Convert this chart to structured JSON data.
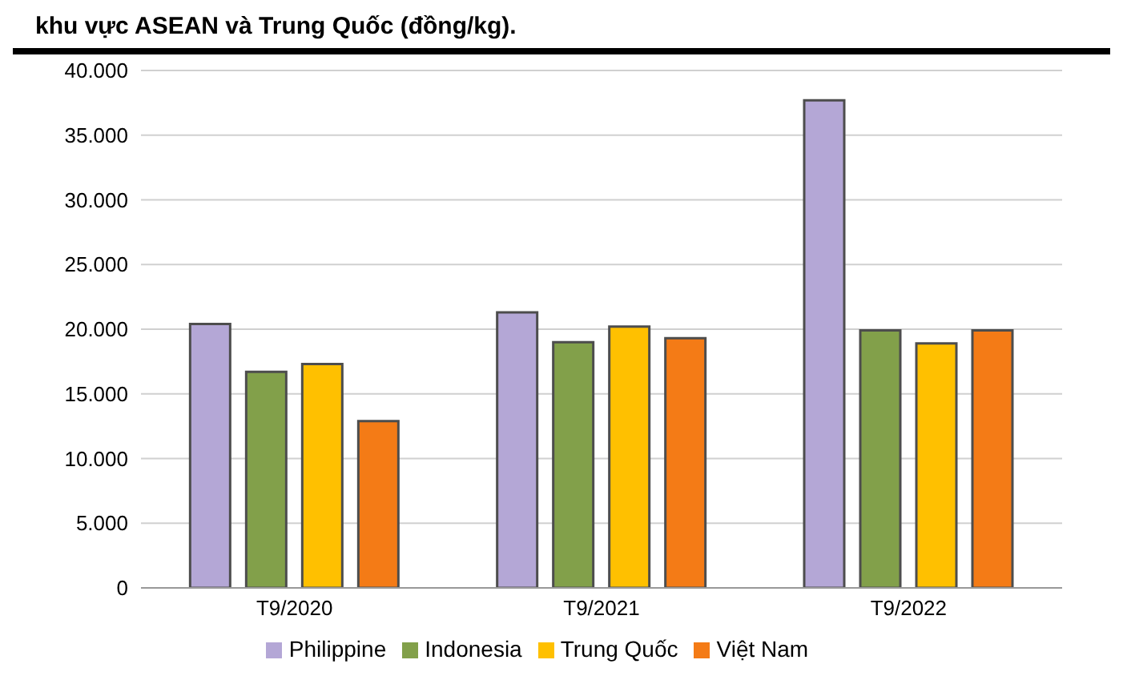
{
  "chart_data": {
    "type": "bar",
    "title": "khu vực ASEAN và Trung Quốc (đồng/kg).",
    "categories": [
      "T9/2020",
      "T9/2021",
      "T9/2022"
    ],
    "series": [
      {
        "name": "Philippine",
        "color": "#b4a7d6",
        "values": [
          20400,
          21300,
          37700
        ]
      },
      {
        "name": "Indonesia",
        "color": "#82a04a",
        "values": [
          16700,
          19000,
          19900
        ]
      },
      {
        "name": "Trung Quốc",
        "color": "#ffc000",
        "values": [
          17300,
          20200,
          18900
        ]
      },
      {
        "name": "Việt Nam",
        "color": "#f47b16",
        "values": [
          12900,
          19300,
          19900
        ]
      }
    ],
    "ylim": [
      0,
      40000
    ],
    "yticks": [
      {
        "value": 0,
        "label": "0"
      },
      {
        "value": 5000,
        "label": "5.000"
      },
      {
        "value": 10000,
        "label": "10.000"
      },
      {
        "value": 15000,
        "label": "15.000"
      },
      {
        "value": 20000,
        "label": "20.000"
      },
      {
        "value": 25000,
        "label": "25.000"
      },
      {
        "value": 30000,
        "label": "30.000"
      },
      {
        "value": 35000,
        "label": "35.000"
      },
      {
        "value": 40000,
        "label": "40.000"
      }
    ],
    "grid": "y",
    "legend": "bottom"
  }
}
